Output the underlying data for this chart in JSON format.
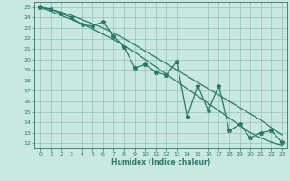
{
  "xlabel": "Humidex (Indice chaleur)",
  "bg_color": "#c8e8e0",
  "grid_color": "#90c4bc",
  "line_color": "#2a7868",
  "xlim": [
    -0.5,
    23.5
  ],
  "ylim": [
    11.5,
    25.5
  ],
  "xticks": [
    0,
    1,
    2,
    3,
    4,
    5,
    6,
    7,
    8,
    9,
    10,
    11,
    12,
    13,
    14,
    15,
    16,
    17,
    18,
    19,
    20,
    21,
    22,
    23
  ],
  "yticks": [
    12,
    13,
    14,
    15,
    16,
    17,
    18,
    19,
    20,
    21,
    22,
    23,
    24,
    25
  ],
  "jagged_x": [
    0,
    1,
    2,
    3,
    4,
    5,
    6,
    7,
    8,
    9,
    10,
    11,
    12,
    13,
    14,
    15,
    16,
    17,
    18,
    19,
    20,
    21,
    22,
    23
  ],
  "jagged_y": [
    25.0,
    24.8,
    24.4,
    24.0,
    23.3,
    23.2,
    23.6,
    22.2,
    21.2,
    19.2,
    19.5,
    18.8,
    18.5,
    19.8,
    14.5,
    17.5,
    15.1,
    17.5,
    13.2,
    13.8,
    12.5,
    13.0,
    13.2,
    12.1
  ],
  "upper_x": [
    0,
    1,
    2,
    3,
    4,
    5,
    6,
    7,
    8,
    9,
    10,
    11,
    12,
    13,
    14,
    15,
    16,
    17,
    18,
    19,
    20,
    21,
    22,
    23
  ],
  "upper_y": [
    25.0,
    24.8,
    24.5,
    24.2,
    23.8,
    23.4,
    23.0,
    22.5,
    22.0,
    21.4,
    20.8,
    20.2,
    19.6,
    19.0,
    18.4,
    17.8,
    17.2,
    16.6,
    16.0,
    15.4,
    14.8,
    14.2,
    13.5,
    12.8
  ],
  "lower_x": [
    0,
    1,
    2,
    3,
    4,
    5,
    6,
    7,
    8,
    9,
    10,
    11,
    12,
    13,
    14,
    15,
    16,
    17,
    18,
    19,
    20,
    21,
    22,
    23
  ],
  "lower_y": [
    25.0,
    24.6,
    24.2,
    23.8,
    23.4,
    22.9,
    22.4,
    21.9,
    21.3,
    20.7,
    20.0,
    19.3,
    18.6,
    17.9,
    17.2,
    16.5,
    15.8,
    15.1,
    14.4,
    13.7,
    13.0,
    12.5,
    12.1,
    11.8
  ]
}
